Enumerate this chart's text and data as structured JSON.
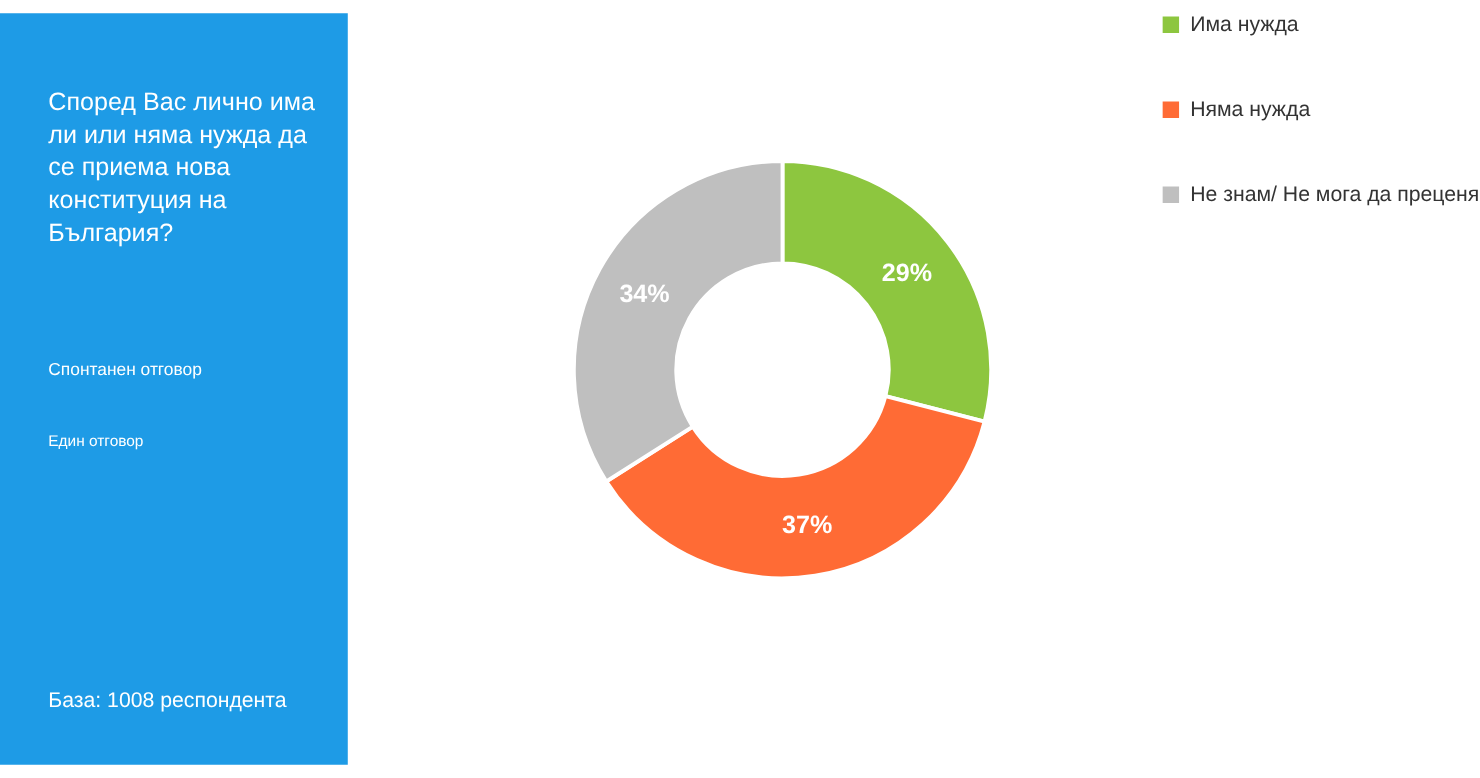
{
  "chart_data": {
    "type": "donut",
    "title": "Според Вас лично има ли или няма нужда да се приема нова конституция на България?",
    "annotations": [
      "Спонтанен отговор",
      "Един отговор",
      "База: 1008 респондента"
    ],
    "categories": [
      "Има нужда",
      "Няма нужда",
      "Не знам/ Не мога да преценя"
    ],
    "values": [
      29,
      37,
      34
    ],
    "value_labels": [
      "29%",
      "37%",
      "34%"
    ],
    "colors": [
      "#8dc63f",
      "#ff6b35",
      "#bfbfbf"
    ],
    "legend": "right"
  }
}
